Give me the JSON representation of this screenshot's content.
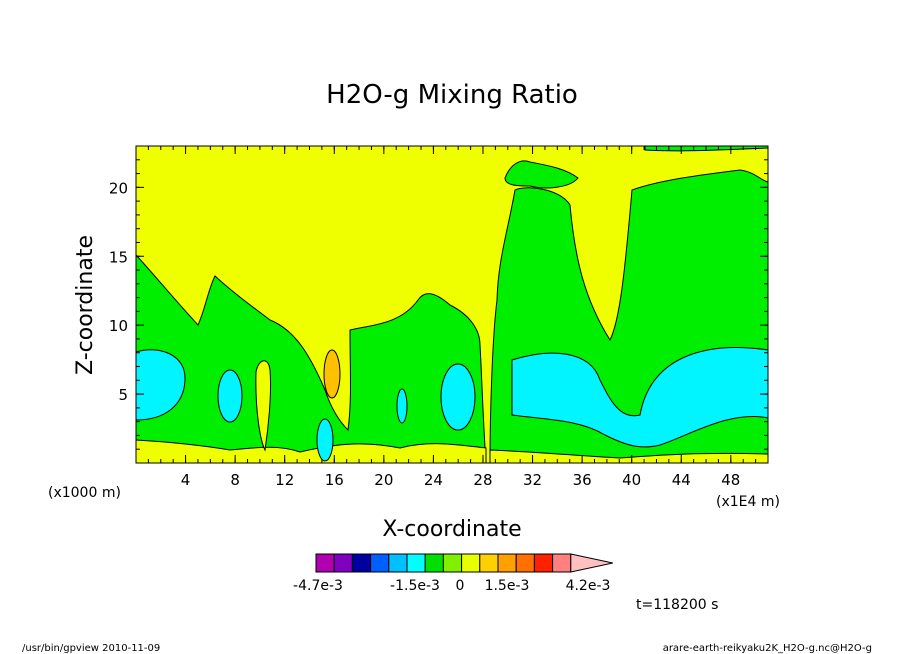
{
  "chart_data": {
    "type": "contour",
    "title": "H2O-g Mixing Ratio",
    "xlabel": "X-coordinate",
    "ylabel": "Z-coordinate",
    "x_unit_left": "(x1000 m)",
    "x_unit_right": "(x1E4 m)",
    "xlim": [
      0,
      51
    ],
    "ylim": [
      0,
      23
    ],
    "x_ticks": [
      "4",
      "8",
      "12",
      "16",
      "20",
      "24",
      "28",
      "32",
      "36",
      "40",
      "44",
      "48"
    ],
    "y_ticks": [
      "5",
      "10",
      "15",
      "20"
    ],
    "time_label": "t=118200 s",
    "colorbar": {
      "labels": [
        "-4.7e-3",
        "-1.5e-3",
        "0",
        "1.5e-3",
        "4.2e-3"
      ],
      "colors": [
        "#b000b0",
        "#8000c0",
        "#0000a0",
        "#0060ff",
        "#00c0ff",
        "#00ffff",
        "#00e000",
        "#80f000",
        "#e8ff00",
        "#ffd000",
        "#ffa000",
        "#ff7000",
        "#ff2000",
        "#ff8080",
        "#ffc0c0"
      ]
    },
    "regions": [
      {
        "level": "yellow",
        "color": "#f0ff00"
      },
      {
        "level": "green",
        "color": "#00ee00"
      },
      {
        "level": "cyan",
        "color": "#00f5ff"
      },
      {
        "level": "orange",
        "color": "#ffc000"
      }
    ]
  },
  "footer": {
    "left": "/usr/bin/gpview  2010-11-09",
    "right": "arare-earth-reikyaku2K_H2O-g.nc@H2O-g"
  }
}
